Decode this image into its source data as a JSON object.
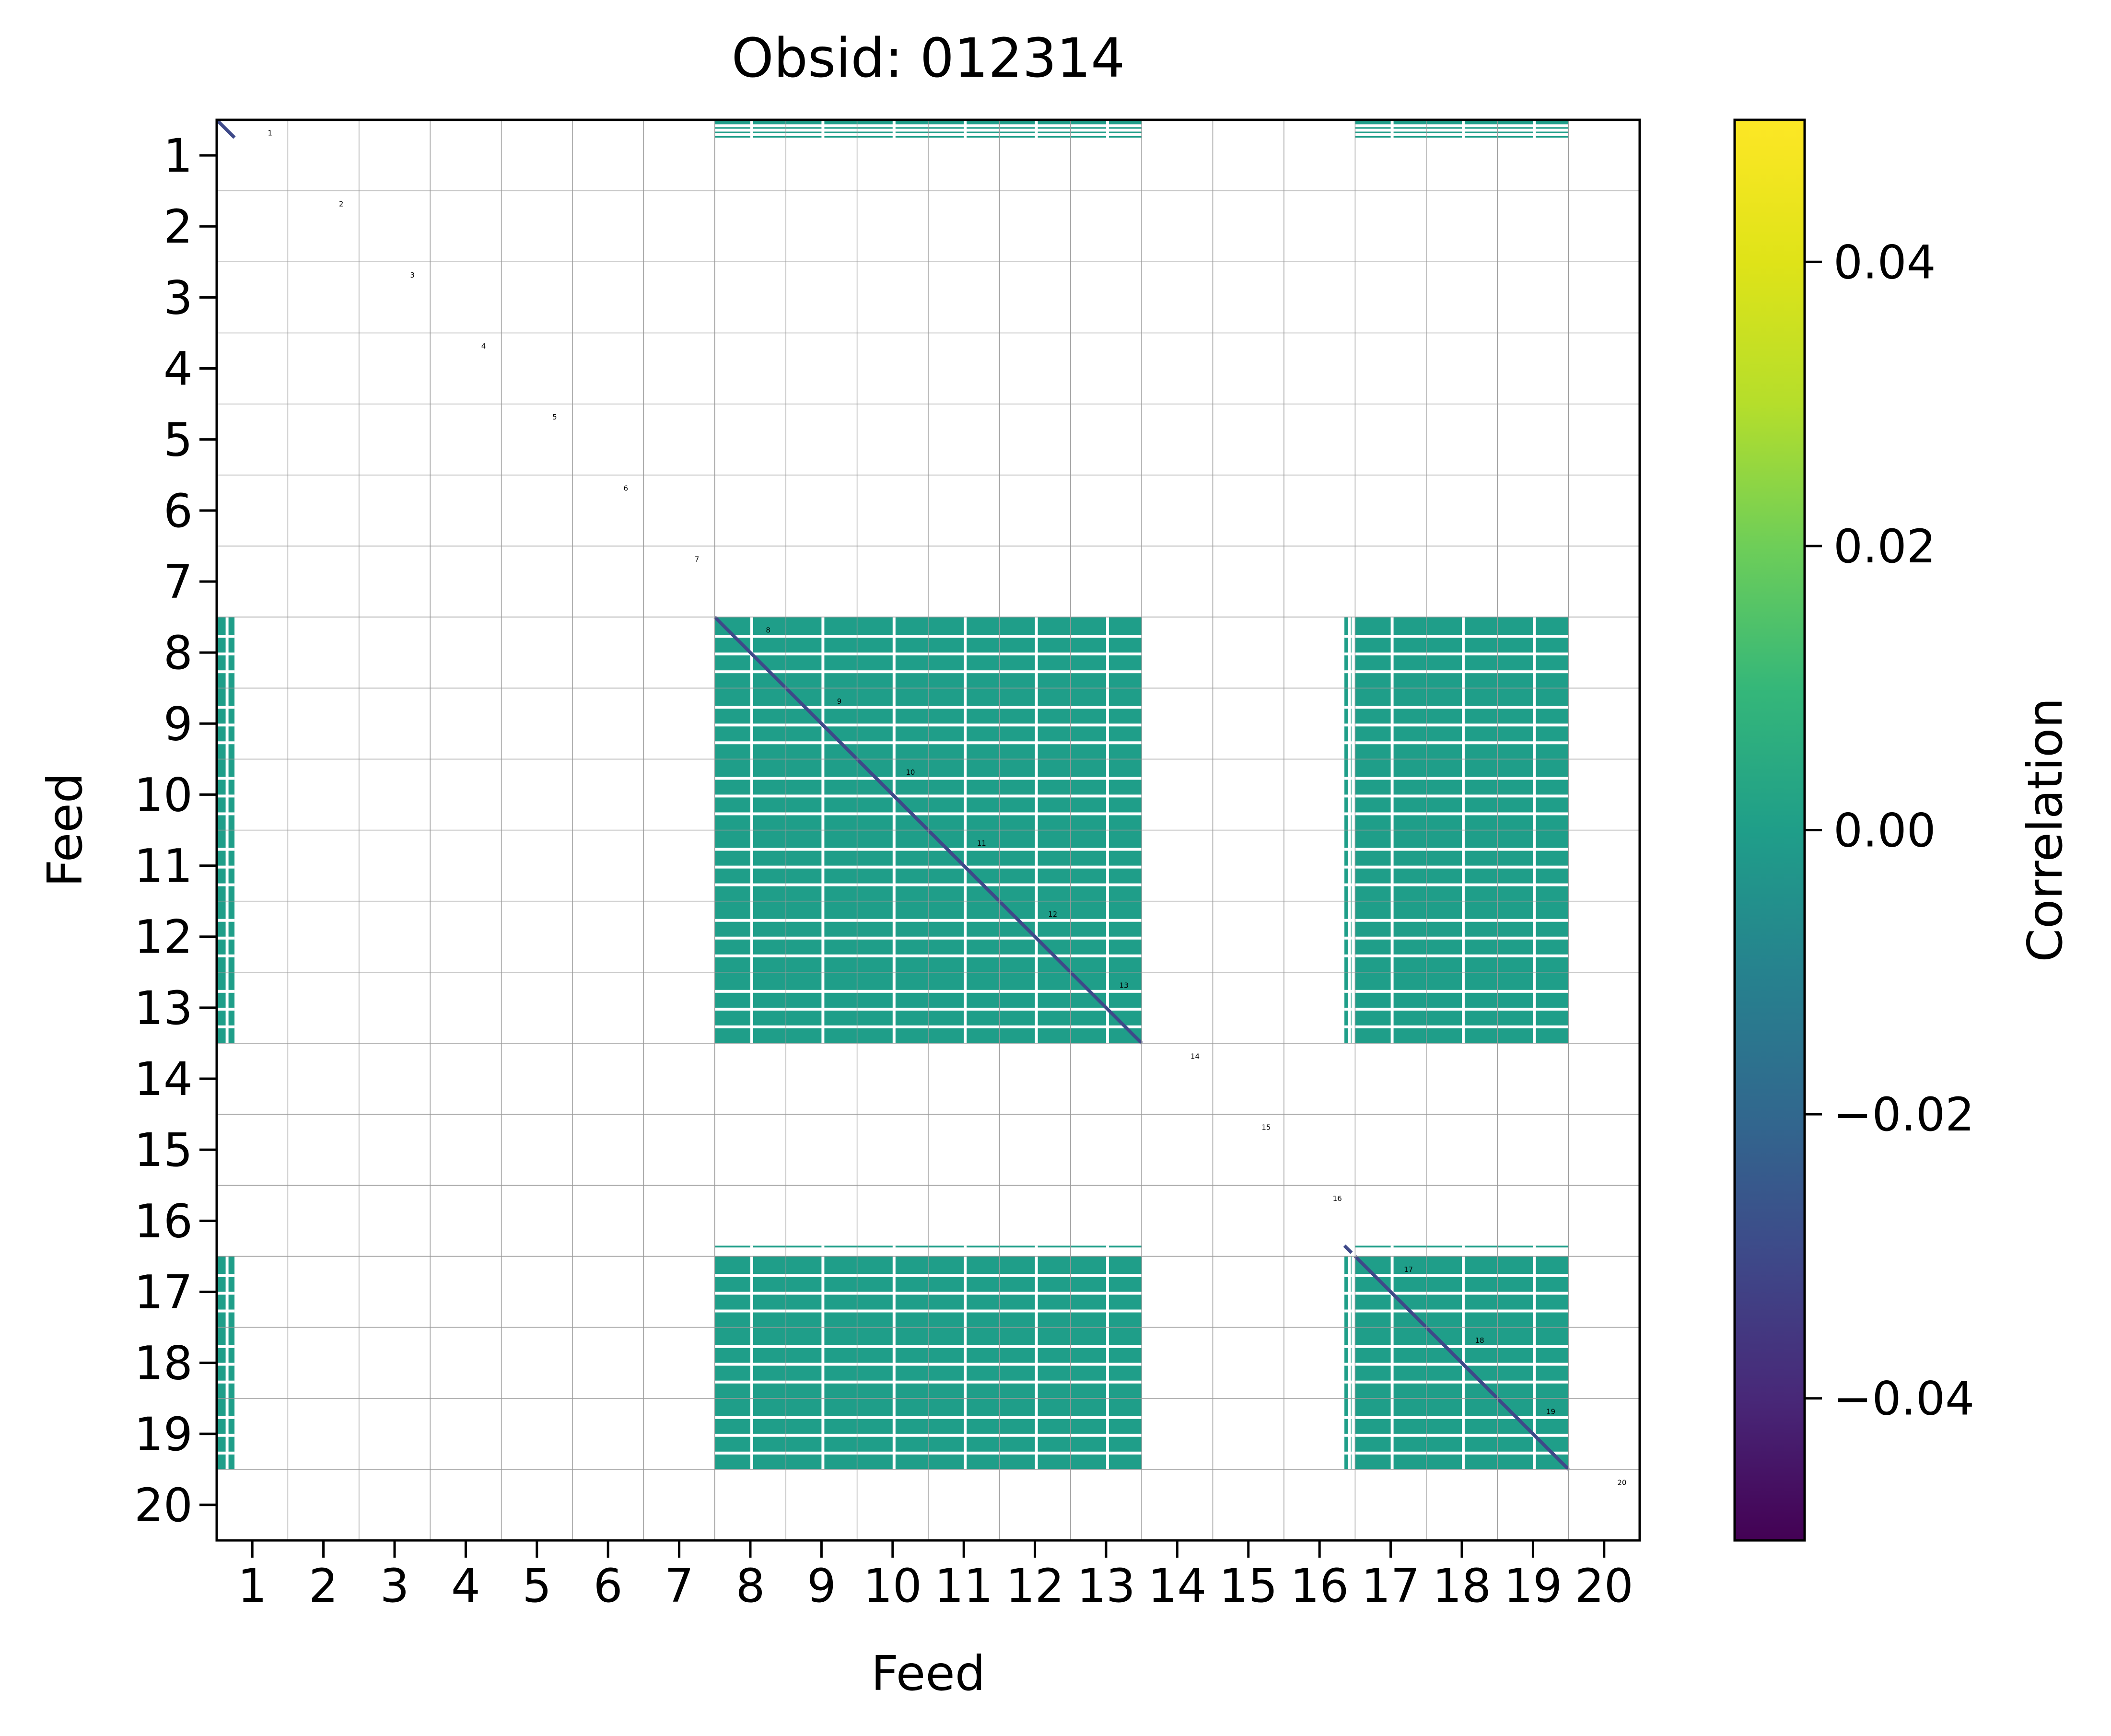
{
  "chart_data": {
    "type": "heatmap",
    "title": "Obsid: 012314",
    "xlabel": "Feed",
    "ylabel": "Feed",
    "x_ticks": [
      "1",
      "2",
      "3",
      "4",
      "5",
      "6",
      "7",
      "8",
      "9",
      "10",
      "11",
      "12",
      "13",
      "14",
      "15",
      "16",
      "17",
      "18",
      "19",
      "20"
    ],
    "y_ticks": [
      "1",
      "2",
      "3",
      "4",
      "5",
      "6",
      "7",
      "8",
      "9",
      "10",
      "11",
      "12",
      "13",
      "14",
      "15",
      "16",
      "17",
      "18",
      "19",
      "20"
    ],
    "block_labels": [
      "1",
      "2",
      "3",
      "4",
      "5",
      "6",
      "7",
      "8",
      "9",
      "10",
      "11",
      "12",
      "13",
      "14",
      "15",
      "16",
      "17",
      "18",
      "19",
      "20"
    ],
    "n_feeds": 20,
    "colormap": "viridis",
    "colorbar": {
      "label": "Correlation",
      "range": [
        -0.05,
        0.05
      ],
      "ticks": [
        0.04,
        0.02,
        0.0,
        -0.02,
        -0.04
      ],
      "tick_labels": [
        "0.04",
        "0.02",
        "0.00",
        "−0.02",
        "−0.04"
      ]
    },
    "dominant_value": 0.0,
    "dominant_color": "#21918c",
    "diagonal_value": -0.03,
    "active_feeds": [
      8,
      9,
      10,
      11,
      12,
      13,
      17,
      18,
      19
    ],
    "partial_feeds": [
      {
        "feed": 1,
        "partial_fraction": [
          0.0,
          0.25
        ]
      },
      {
        "feed": 16,
        "partial_fraction": [
          0.85,
          0.95
        ]
      }
    ],
    "grid": true
  }
}
